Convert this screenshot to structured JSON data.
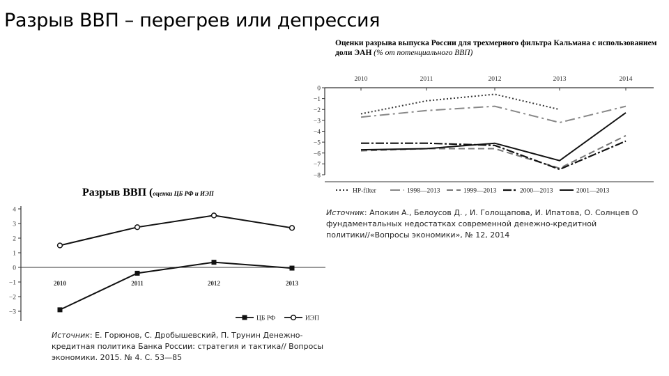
{
  "slide": {
    "title": "Разрыв ВВП – перегрев или депрессия"
  },
  "chart1_title": {
    "main": "Оценки разрыва выпуска России для трехмерного фильтра Кальмана с использованием доли ЭАН ",
    "note": "(% от потенциального ВВП)"
  },
  "chart2_title": {
    "main": "Разрыв ВВП (",
    "note": "оценки ЦБ РФ и ИЭП"
  },
  "source1": {
    "label": "Источник",
    "text": ": Апокин А., Белоусов Д. , И. Голощапова, И. Ипатова, О. Солнцев О фундаментальных недостатках современной денежно-кредитной политики//«Вопросы экономики», № 12, 2014"
  },
  "source2": {
    "label": "Источник",
    "text": ": Е. Горюнов, С. Дробышевский, П. Трунин Денежно-кредитная политика Банка России: стратегия и тактика// Вопросы экономики. 2015. № 4. С. 53—85"
  },
  "chart_data": [
    {
      "type": "line",
      "x": [
        "2010",
        "2011",
        "2012",
        "2013",
        "2014"
      ],
      "ylim": [
        -8,
        0
      ],
      "yticks": [
        "0",
        "−1",
        "−2",
        "−3",
        "−4",
        "−5",
        "−6",
        "−7",
        "−8"
      ],
      "grid": false,
      "legend_position": "bottom",
      "series": [
        {
          "name": "HP-filter",
          "style": "dotted",
          "values": [
            -2.4,
            -1.2,
            -0.6,
            -2.0,
            null
          ]
        },
        {
          "name": "1998—2013",
          "style": "dashdot",
          "values": [
            -2.7,
            -2.1,
            -1.7,
            -3.2,
            -1.7
          ]
        },
        {
          "name": "1999—2013",
          "style": "dashed",
          "values": [
            -5.8,
            -5.6,
            -5.6,
            -7.4,
            -4.4
          ]
        },
        {
          "name": "2000—2013",
          "style": "dashdotbold",
          "values": [
            -5.1,
            -5.1,
            -5.3,
            -7.5,
            -4.9
          ]
        },
        {
          "name": "2001—2013",
          "style": "solid",
          "values": [
            -5.7,
            -5.6,
            -5.1,
            -6.7,
            -2.3
          ]
        }
      ]
    },
    {
      "type": "line",
      "x": [
        "2010",
        "2011",
        "2012",
        "2013"
      ],
      "ylim": [
        -3,
        4
      ],
      "yticks": [
        "4",
        "3",
        "2",
        "1",
        "0",
        "−1",
        "−2",
        "−3"
      ],
      "grid": false,
      "legend_position": "bottom-right",
      "series": [
        {
          "name": "ЦБ РФ",
          "marker": "square",
          "values": [
            -2.9,
            -0.4,
            0.35,
            -0.05
          ]
        },
        {
          "name": "ИЭП",
          "marker": "circle",
          "values": [
            1.5,
            2.75,
            3.55,
            2.7
          ]
        }
      ]
    }
  ]
}
